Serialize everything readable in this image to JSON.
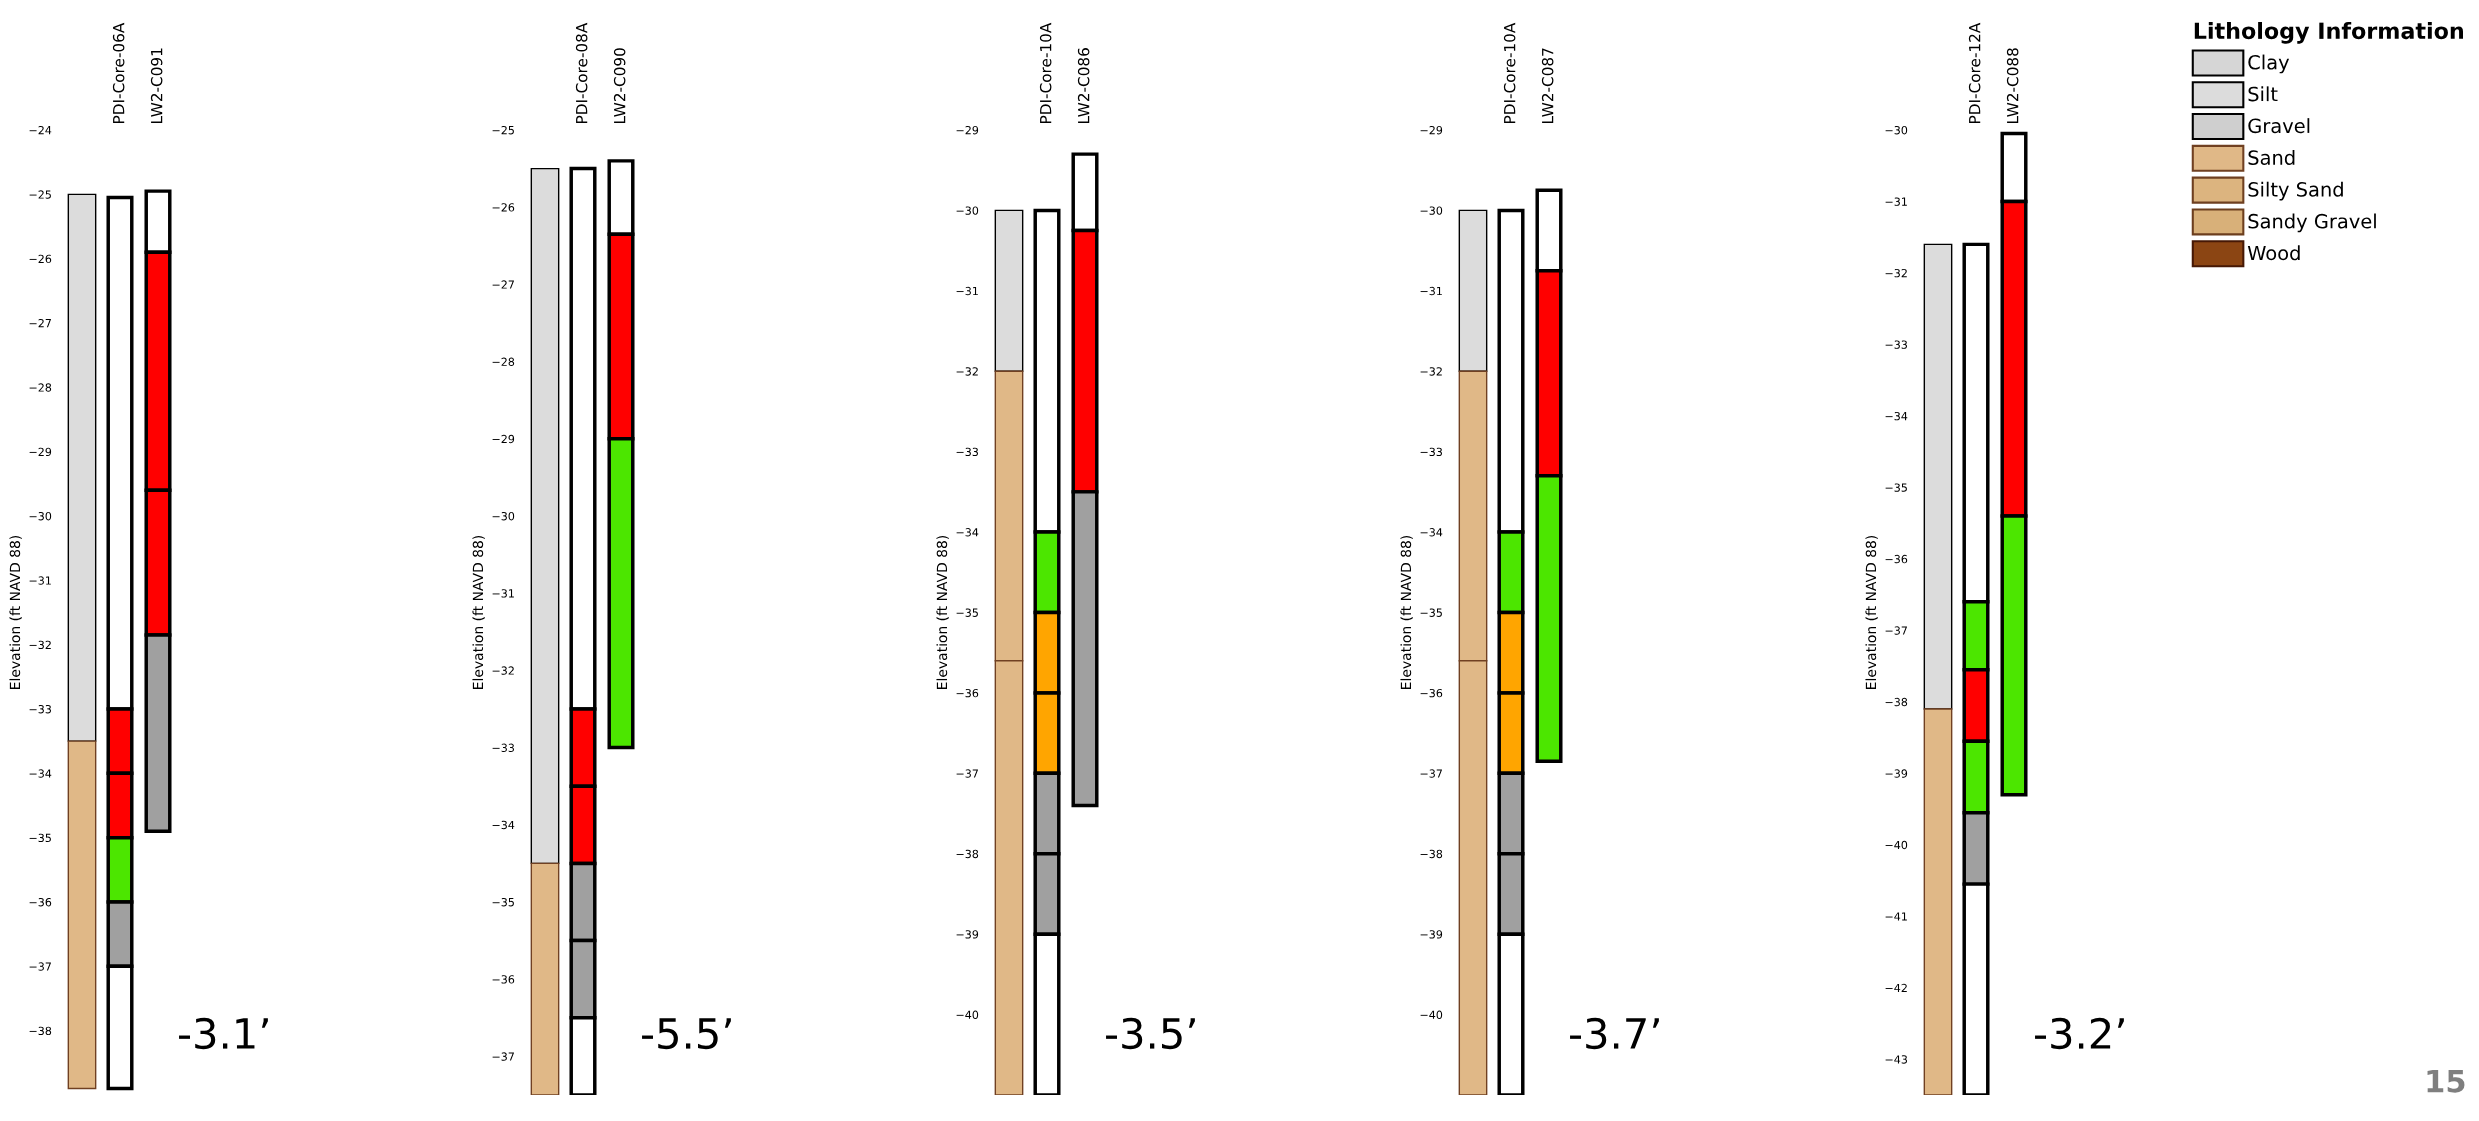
{
  "chart_data": [
    {
      "type": "bar",
      "categories": [
        null,
        "PDI-Core-06A",
        "LW2-C091"
      ],
      "ylabel": "Elevation (ft NAVD 88)",
      "ylim": [
        -39,
        -24
      ],
      "yticks": [
        -38,
        -37,
        -36,
        -35,
        -34,
        -33,
        -32,
        -31,
        -30,
        -29,
        -28,
        -27,
        -26,
        -25,
        -24
      ],
      "grid": false,
      "annotations": [
        "-3.1’"
      ],
      "series": [
        {
          "color": "#dcdcdc",
          "values": [
            8.5,
            null,
            null
          ],
          "base": [
            -33.5,
            null,
            null
          ]
        },
        {
          "color": "#e0b887",
          "values": [
            5.4,
            null,
            null
          ],
          "base": [
            -38.9,
            null,
            null
          ]
        },
        {
          "color": "#ffffff",
          "values": [
            null,
            7.95,
            null
          ],
          "base": [
            null,
            -33,
            null
          ]
        },
        {
          "color": "#ff0000",
          "values": [
            null,
            1,
            null
          ],
          "base": [
            null,
            -34,
            null
          ]
        },
        {
          "color": "#ff0000",
          "values": [
            null,
            1,
            null
          ],
          "base": [
            null,
            -35,
            null
          ]
        },
        {
          "color": "#4ce600",
          "values": [
            null,
            1,
            null
          ],
          "base": [
            null,
            -36,
            null
          ]
        },
        {
          "color": "#a0a0a0",
          "values": [
            null,
            1,
            null
          ],
          "base": [
            null,
            -37,
            null
          ]
        },
        {
          "color": "#ffffff",
          "values": [
            null,
            1.9,
            null
          ],
          "base": [
            null,
            -38.9,
            null
          ]
        },
        {
          "color": "#ffffff",
          "values": [
            null,
            null,
            0.95
          ],
          "base": [
            null,
            null,
            -25.9
          ]
        },
        {
          "color": "#ff0000",
          "values": [
            null,
            null,
            3.7
          ],
          "base": [
            null,
            null,
            -29.6
          ]
        },
        {
          "color": "#ff0000",
          "values": [
            null,
            null,
            2.25
          ],
          "base": [
            null,
            null,
            -31.85
          ]
        },
        {
          "color": "#a0a0a0",
          "values": [
            null,
            null,
            3.05
          ],
          "base": [
            null,
            null,
            -34.9
          ]
        }
      ]
    },
    {
      "type": "bar",
      "categories": [
        null,
        "PDI-Core-08A",
        "LW2-C090"
      ],
      "ylabel": "Elevation (ft NAVD 88)",
      "ylim": [
        -37.5,
        -25
      ],
      "yticks": [
        -37,
        -36,
        -35,
        -34,
        -33,
        -32,
        -31,
        -30,
        -29,
        -28,
        -27,
        -26,
        -25
      ],
      "grid": false,
      "annotations": [
        "-5.5’"
      ],
      "series": [
        {
          "color": "#dcdcdc",
          "values": [
            9,
            null,
            null
          ],
          "base": [
            -34.5,
            null,
            null
          ]
        },
        {
          "color": "#e0b887",
          "values": [
            3,
            null,
            null
          ],
          "base": [
            -37.5,
            null,
            null
          ]
        },
        {
          "color": "#ffffff",
          "values": [
            null,
            7,
            null
          ],
          "base": [
            null,
            -32.5,
            null
          ]
        },
        {
          "color": "#ff0000",
          "values": [
            null,
            1,
            null
          ],
          "base": [
            null,
            -33.5,
            null
          ]
        },
        {
          "color": "#ff0000",
          "values": [
            null,
            1,
            null
          ],
          "base": [
            null,
            -34.5,
            null
          ]
        },
        {
          "color": "#a0a0a0",
          "values": [
            null,
            1,
            null
          ],
          "base": [
            null,
            -35.5,
            null
          ]
        },
        {
          "color": "#a0a0a0",
          "values": [
            null,
            1,
            null
          ],
          "base": [
            null,
            -36.5,
            null
          ]
        },
        {
          "color": "#ffffff",
          "values": [
            null,
            1,
            null
          ],
          "base": [
            null,
            -37.5,
            null
          ]
        },
        {
          "color": "#ffffff",
          "values": [
            null,
            null,
            0.95
          ],
          "base": [
            null,
            null,
            -26.35
          ]
        },
        {
          "color": "#ff0000",
          "values": [
            null,
            null,
            2.65
          ],
          "base": [
            null,
            null,
            -29
          ]
        },
        {
          "color": "#4ce600",
          "values": [
            null,
            null,
            4
          ],
          "base": [
            null,
            null,
            -33
          ]
        }
      ]
    },
    {
      "type": "bar",
      "categories": [
        null,
        "PDI-Core-10A",
        "LW2-C086"
      ],
      "ylabel": "Elevation (ft NAVD 88)",
      "ylim": [
        -41,
        -29
      ],
      "yticks": [
        -40,
        -39,
        -38,
        -37,
        -36,
        -35,
        -34,
        -33,
        -32,
        -31,
        -30,
        -29
      ],
      "grid": false,
      "annotations": [
        "-3.5’"
      ],
      "series": [
        {
          "color": "#dcdcdc",
          "values": [
            2,
            null,
            null
          ],
          "base": [
            -32,
            null,
            null
          ]
        },
        {
          "color": "#e0b887",
          "values": [
            3.6,
            null,
            null
          ],
          "base": [
            -35.6,
            null,
            null
          ]
        },
        {
          "color": "#e0b887",
          "values": [
            5.4,
            null,
            null
          ],
          "base": [
            -41,
            null,
            null
          ]
        },
        {
          "color": "#ffffff",
          "values": [
            null,
            4,
            null
          ],
          "base": [
            null,
            -34,
            null
          ]
        },
        {
          "color": "#4ce600",
          "values": [
            null,
            1,
            null
          ],
          "base": [
            null,
            -35,
            null
          ]
        },
        {
          "color": "#ffa500",
          "values": [
            null,
            1,
            null
          ],
          "base": [
            null,
            -36,
            null
          ]
        },
        {
          "color": "#ffa500",
          "values": [
            null,
            1,
            null
          ],
          "base": [
            null,
            -37,
            null
          ]
        },
        {
          "color": "#a0a0a0",
          "values": [
            null,
            1,
            null
          ],
          "base": [
            null,
            -38,
            null
          ]
        },
        {
          "color": "#a0a0a0",
          "values": [
            null,
            1,
            null
          ],
          "base": [
            null,
            -39,
            null
          ]
        },
        {
          "color": "#ffffff",
          "values": [
            null,
            2,
            null
          ],
          "base": [
            null,
            -41,
            null
          ]
        },
        {
          "color": "#ffffff",
          "values": [
            null,
            null,
            0.95
          ],
          "base": [
            null,
            null,
            -30.25
          ]
        },
        {
          "color": "#ff0000",
          "values": [
            null,
            null,
            3.25
          ],
          "base": [
            null,
            null,
            -33.5
          ]
        },
        {
          "color": "#a0a0a0",
          "values": [
            null,
            null,
            3.9
          ],
          "base": [
            null,
            null,
            -37.4
          ]
        }
      ]
    },
    {
      "type": "bar",
      "categories": [
        null,
        "PDI-Core-10A",
        "LW2-C087"
      ],
      "ylabel": "Elevation (ft NAVD 88)",
      "ylim": [
        -41,
        -29
      ],
      "yticks": [
        -40,
        -39,
        -38,
        -37,
        -36,
        -35,
        -34,
        -33,
        -32,
        -31,
        -30,
        -29
      ],
      "grid": false,
      "annotations": [
        "-3.7’"
      ],
      "series": [
        {
          "color": "#dcdcdc",
          "values": [
            2,
            null,
            null
          ],
          "base": [
            -32,
            null,
            null
          ]
        },
        {
          "color": "#e0b887",
          "values": [
            3.6,
            null,
            null
          ],
          "base": [
            -35.6,
            null,
            null
          ]
        },
        {
          "color": "#e0b887",
          "values": [
            5.4,
            null,
            null
          ],
          "base": [
            -41,
            null,
            null
          ]
        },
        {
          "color": "#ffffff",
          "values": [
            null,
            4,
            null
          ],
          "base": [
            null,
            -34,
            null
          ]
        },
        {
          "color": "#4ce600",
          "values": [
            null,
            1,
            null
          ],
          "base": [
            null,
            -35,
            null
          ]
        },
        {
          "color": "#ffa500",
          "values": [
            null,
            1,
            null
          ],
          "base": [
            null,
            -36,
            null
          ]
        },
        {
          "color": "#ffa500",
          "values": [
            null,
            1,
            null
          ],
          "base": [
            null,
            -37,
            null
          ]
        },
        {
          "color": "#a0a0a0",
          "values": [
            null,
            1,
            null
          ],
          "base": [
            null,
            -38,
            null
          ]
        },
        {
          "color": "#a0a0a0",
          "values": [
            null,
            1,
            null
          ],
          "base": [
            null,
            -39,
            null
          ]
        },
        {
          "color": "#ffffff",
          "values": [
            null,
            2,
            null
          ],
          "base": [
            null,
            -41,
            null
          ]
        },
        {
          "color": "#ffffff",
          "values": [
            null,
            null,
            1
          ],
          "base": [
            null,
            null,
            -30.75
          ]
        },
        {
          "color": "#ff0000",
          "values": [
            null,
            null,
            2.55
          ],
          "base": [
            null,
            null,
            -33.3
          ]
        },
        {
          "color": "#4ce600",
          "values": [
            null,
            null,
            3.55
          ],
          "base": [
            null,
            null,
            -36.85
          ]
        }
      ]
    },
    {
      "type": "bar",
      "categories": [
        null,
        "PDI-Core-12A",
        "LW2-C088"
      ],
      "ylabel": "Elevation (ft NAVD 88)",
      "ylim": [
        -43.5,
        -30
      ],
      "yticks": [
        -43,
        -42,
        -41,
        -40,
        -39,
        -38,
        -37,
        -36,
        -35,
        -34,
        -33,
        -32,
        -31,
        -30
      ],
      "grid": false,
      "legend": "right",
      "legend_title": "Lithology Information",
      "annotations": [
        "-3.2’",
        "15"
      ],
      "series": [
        {
          "name": "Clay",
          "color": "#d6d6d6",
          "values": [
            null,
            null,
            null
          ],
          "base": [
            null,
            null,
            null
          ]
        },
        {
          "name": "Silt",
          "color": "#dcdcdc",
          "values": [
            6.5,
            null,
            null
          ],
          "base": [
            -38.1,
            null,
            null
          ]
        },
        {
          "name": "Gravel",
          "color": "#cfcfcf",
          "values": [
            null,
            null,
            null
          ],
          "base": [
            null,
            null,
            null
          ]
        },
        {
          "name": "Sand",
          "color": "#e0b887",
          "values": [
            5.4,
            null,
            null
          ],
          "base": [
            -43.5,
            null,
            null
          ]
        },
        {
          "name": "Silty Sand",
          "color": "#dcb47f",
          "values": [
            null,
            null,
            null
          ],
          "base": [
            null,
            null,
            null
          ]
        },
        {
          "name": "Sandy Gravel",
          "color": "#d8b079",
          "values": [
            null,
            null,
            null
          ],
          "base": [
            null,
            null,
            null
          ]
        },
        {
          "name": "Wood",
          "color": "#8b4513",
          "values": [
            null,
            null,
            null
          ],
          "base": [
            null,
            null,
            null
          ]
        },
        {
          "color": "#ffffff",
          "values": [
            null,
            5,
            null
          ],
          "base": [
            null,
            -36.6,
            null
          ]
        },
        {
          "color": "#4ce600",
          "values": [
            null,
            0.95,
            null
          ],
          "base": [
            null,
            -37.55,
            null
          ]
        },
        {
          "color": "#ff0000",
          "values": [
            null,
            1,
            null
          ],
          "base": [
            null,
            -38.55,
            null
          ]
        },
        {
          "color": "#4ce600",
          "values": [
            null,
            1,
            null
          ],
          "base": [
            null,
            -39.55,
            null
          ]
        },
        {
          "color": "#a0a0a0",
          "values": [
            null,
            1,
            null
          ],
          "base": [
            null,
            -40.55,
            null
          ]
        },
        {
          "color": "#ffffff",
          "values": [
            null,
            2.95,
            null
          ],
          "base": [
            null,
            -43.5,
            null
          ]
        },
        {
          "color": "#ffffff",
          "values": [
            null,
            null,
            0.95
          ],
          "base": [
            null,
            null,
            -31
          ]
        },
        {
          "color": "#ff0000",
          "values": [
            null,
            null,
            4.4
          ],
          "base": [
            null,
            null,
            -35.4
          ]
        },
        {
          "color": "#4ce600",
          "values": [
            null,
            null,
            3.9
          ],
          "base": [
            null,
            null,
            -39.3
          ]
        }
      ]
    }
  ]
}
